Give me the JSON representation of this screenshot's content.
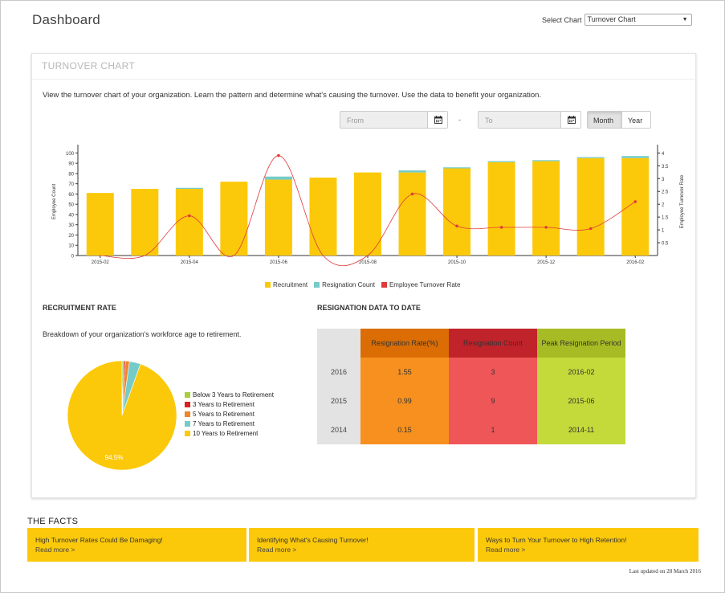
{
  "header": {
    "title": "Dashboard",
    "select_label": "Select Chart",
    "select_value": "Turnover Chart"
  },
  "turnover": {
    "title": "TURNOVER CHART",
    "description": "View the turnover chart of your organization. Learn the pattern and determine what's causing the turnover. Use the data to benefit your organization.",
    "from_placeholder": "From",
    "to_placeholder": "To",
    "separator": "-",
    "month_label": "Month",
    "year_label": "Year",
    "active_toggle": "Month"
  },
  "chart_data": [
    {
      "type": "bar",
      "x": [
        "2015-02",
        "2015-03",
        "2015-04",
        "2015-05",
        "2015-06",
        "2015-07",
        "2015-08",
        "2015-09",
        "2015-10",
        "2015-11",
        "2015-12",
        "2016-01",
        "2016-02"
      ],
      "x_tick_labels": [
        "2015-02",
        "2015-04",
        "2015-06",
        "2015-08",
        "2015-10",
        "2015-12",
        "2016-02"
      ],
      "series": [
        {
          "name": "Recruitment",
          "type": "bar",
          "stack": "count",
          "color": "#fcc90a",
          "values": [
            61,
            65,
            65,
            72,
            74,
            76,
            81,
            81,
            85,
            91,
            92,
            95,
            95
          ]
        },
        {
          "name": "Resignation Count",
          "type": "bar",
          "stack": "count",
          "color": "#74cbc8",
          "values": [
            0,
            0,
            1,
            0,
            3,
            0,
            0,
            2,
            1,
            1,
            1,
            1,
            2
          ]
        },
        {
          "name": "Employee Turnover Rate",
          "type": "line",
          "axis": "right",
          "color": "#e03a3a",
          "values": [
            0,
            0,
            1.55,
            0,
            3.9,
            0,
            0,
            2.4,
            1.15,
            1.1,
            1.1,
            1.05,
            2.1
          ]
        }
      ],
      "ylabel": "Employee Count",
      "y2label": "Employee Turnover Rate",
      "ylim": [
        0,
        105
      ],
      "y_ticks": [
        0,
        10,
        20,
        30,
        40,
        50,
        60,
        70,
        80,
        90,
        100
      ],
      "y2lim": [
        0,
        4.2
      ],
      "y2_ticks": [
        0.5,
        1,
        1.5,
        2,
        2.5,
        3,
        3.5,
        4
      ],
      "legend": "bottom"
    },
    {
      "type": "pie",
      "series": [
        {
          "name": "Below 3 Years to Retirement",
          "value": 0.5,
          "color": "#a9cf3d"
        },
        {
          "name": "3 Years to Retirement",
          "value": 0.5,
          "color": "#d9231f"
        },
        {
          "name": "5 Years to Retirement",
          "value": 1.2,
          "color": "#f0852a"
        },
        {
          "name": "7 Years to Retirement",
          "value": 3.3,
          "color": "#74cbc8"
        },
        {
          "name": "10 Years to Retirement",
          "value": 94.5,
          "color": "#fcc90a"
        }
      ],
      "slice_label": "94.5%",
      "legend": "right"
    }
  ],
  "recruitment": {
    "title": "RECRUITMENT RATE",
    "description": "Breakdown of your organization's workforce age to retirement."
  },
  "resignation": {
    "title": "RESIGNATION DATA TO DATE",
    "headers": [
      "Resignation Rate(%)",
      "Resignation Count",
      "Peak Resignation Period"
    ],
    "rows": [
      {
        "year": "2016",
        "rate": "1.55",
        "count": "3",
        "peak": "2016-02"
      },
      {
        "year": "2015",
        "rate": "0.99",
        "count": "9",
        "peak": "2015-06"
      },
      {
        "year": "2014",
        "rate": "0.15",
        "count": "1",
        "peak": "2014-11"
      }
    ]
  },
  "facts": {
    "title": "THE FACTS",
    "items": [
      {
        "title": "High Turnover Rates Could Be Damaging!",
        "link": "Read more >"
      },
      {
        "title": "Identifying What's Causing Turnover!",
        "link": "Read more >"
      },
      {
        "title": "Ways to Turn Your Turnover to High Retention!",
        "link": "Read more >"
      }
    ],
    "updated": "Last updated on 28 March 2016"
  }
}
